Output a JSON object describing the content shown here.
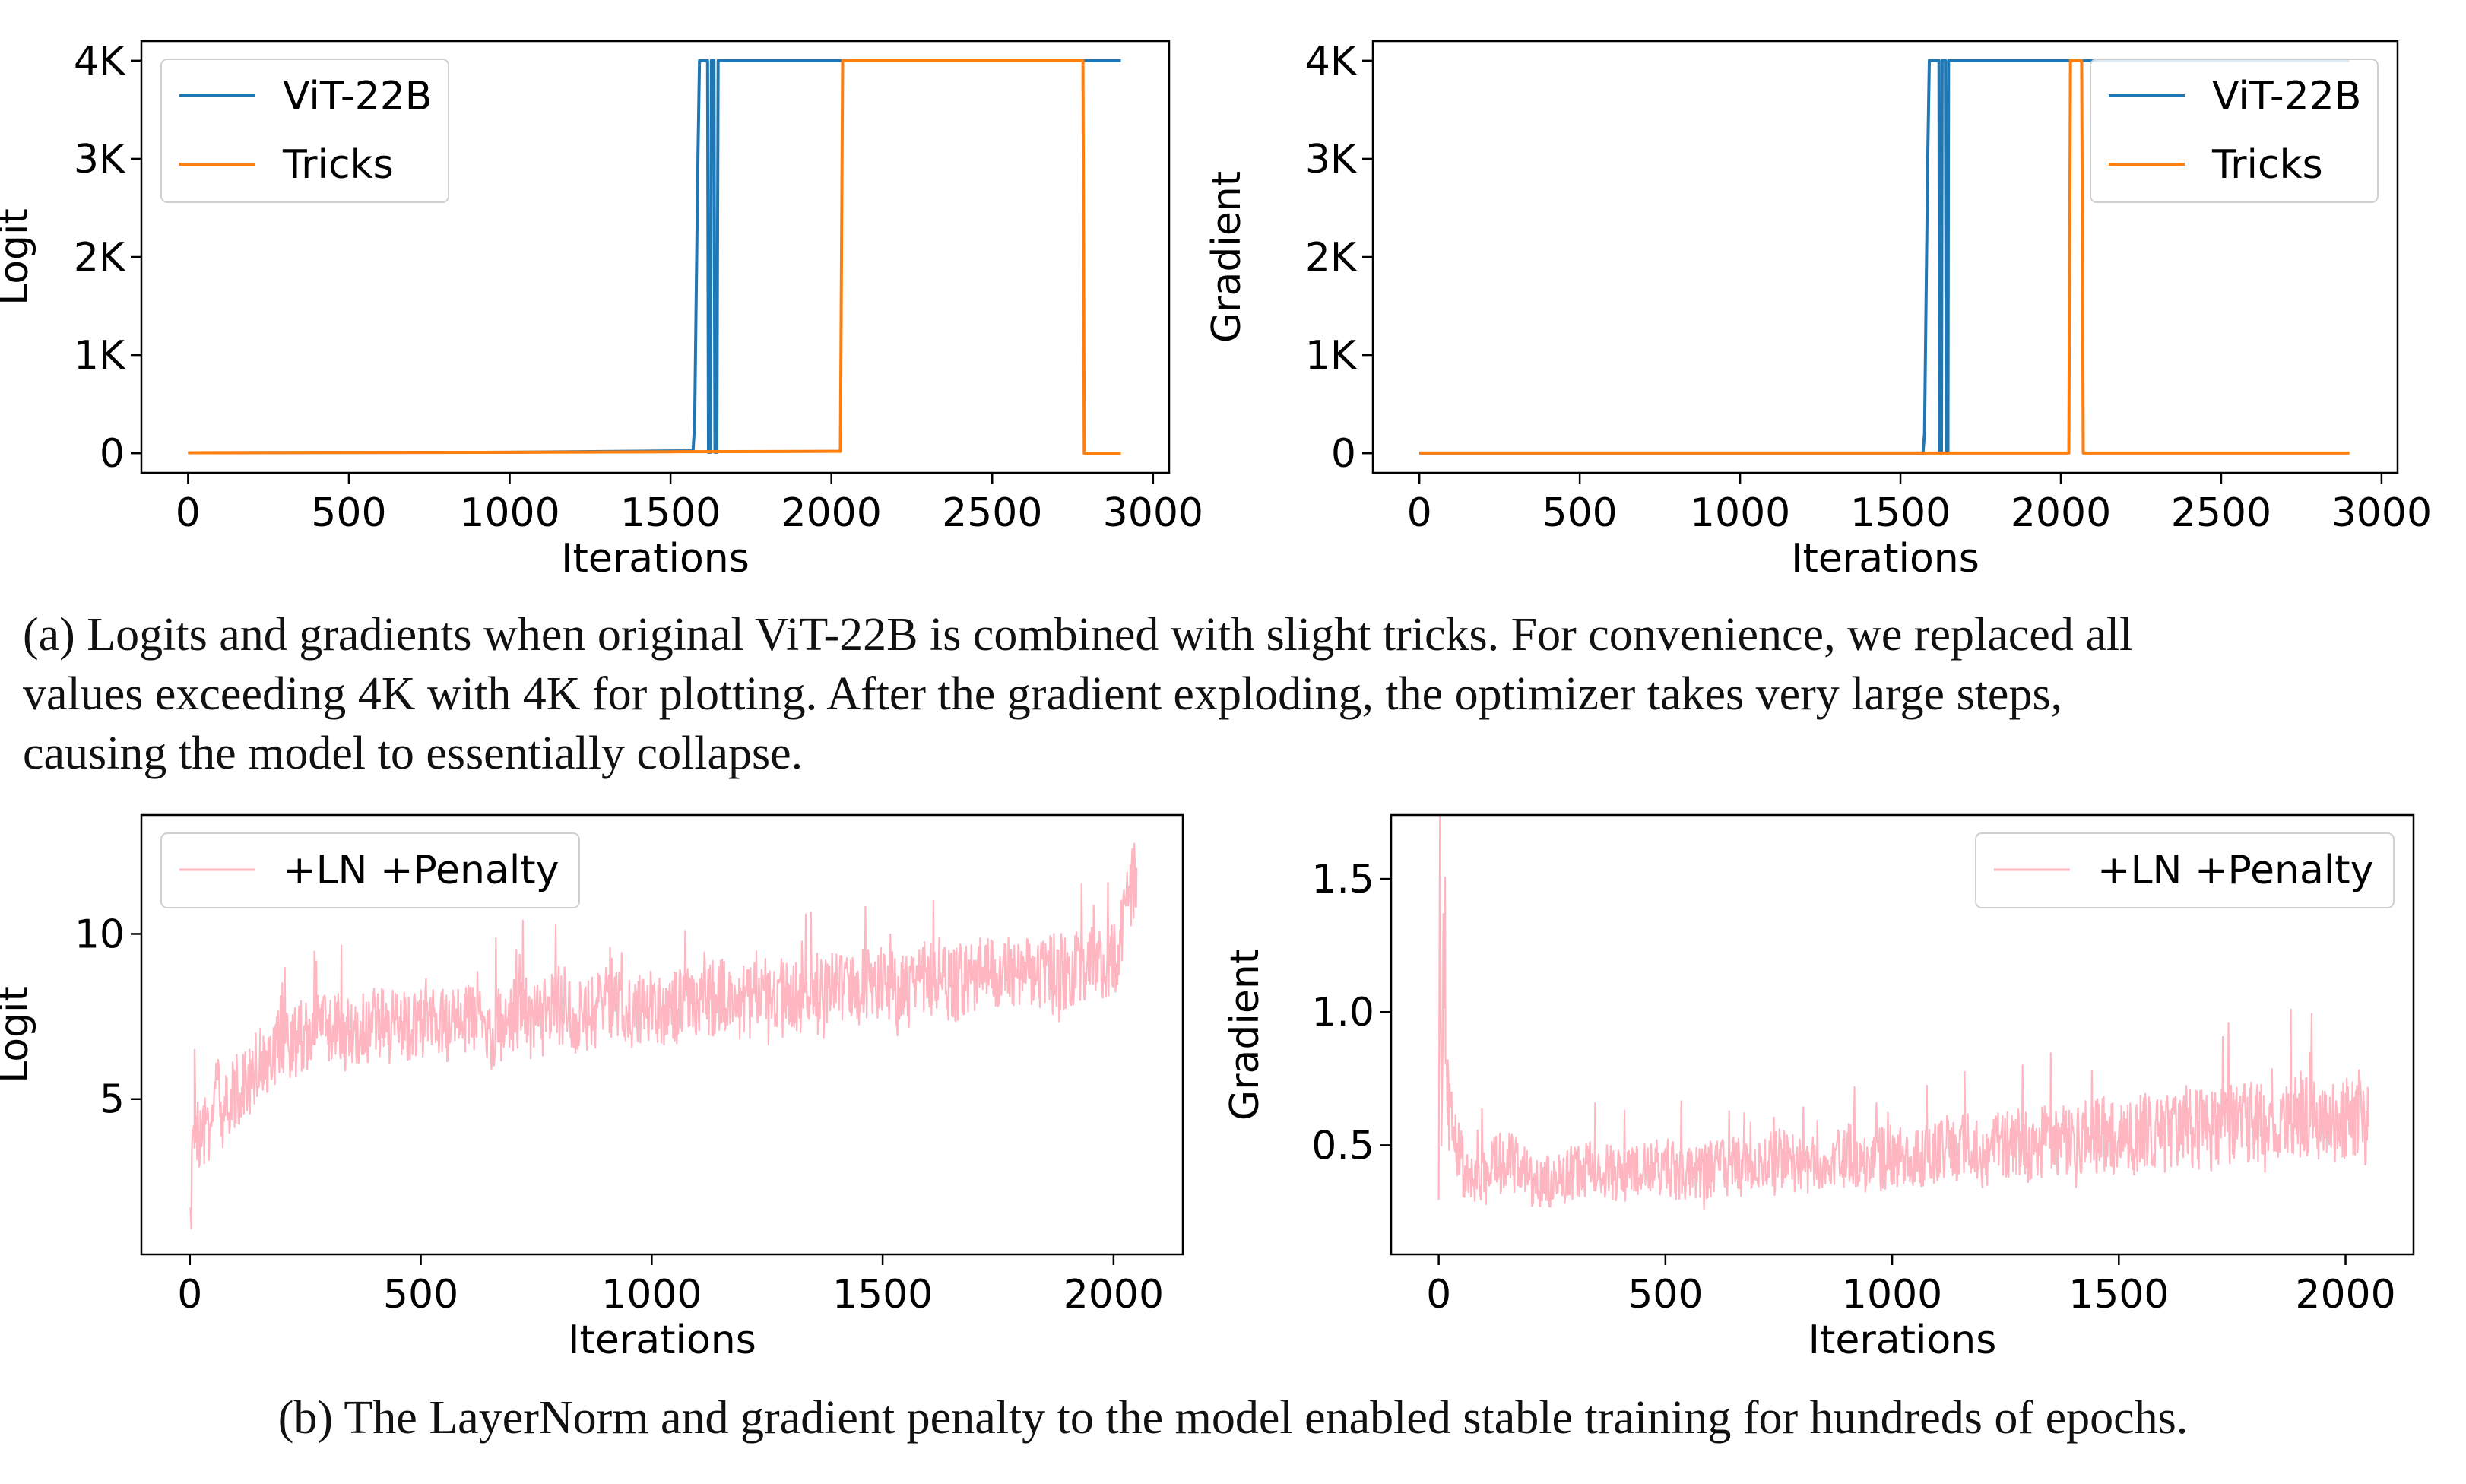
{
  "colors": {
    "vit": "#1f77b4",
    "tricks": "#ff7f0e",
    "penalty": "#ffb6c1",
    "frame": "#000000"
  },
  "captions": {
    "a": [
      "(a) Logits and gradients when original ViT-22B is combined with slight tricks. For convenience, we replaced all",
      "values exceeding 4K with 4K for plotting. After the gradient exploding, the optimizer takes very large steps,",
      "causing the model to essentially collapse."
    ],
    "b": "(b) The LayerNorm and gradient penalty to the model enabled stable training for hundreds of epochs."
  },
  "chart_data": [
    {
      "type": "line",
      "xlabel": "Iterations",
      "ylabel": "Logit",
      "xlim": [
        -145,
        3050
      ],
      "ylim": [
        -200,
        4200
      ],
      "xticks": [
        0,
        500,
        1000,
        1500,
        2000,
        2500,
        3000
      ],
      "xtick_labels": [
        "0",
        "500",
        "1000",
        "1500",
        "2000",
        "2500",
        "3000"
      ],
      "yticks": [
        0,
        1000,
        2000,
        3000,
        4000
      ],
      "ytick_labels": [
        "0",
        "1K",
        "2K",
        "3K",
        "4K"
      ],
      "grid": false,
      "legend": "upper left",
      "series": [
        {
          "name": "ViT-22B",
          "x": [
            0,
            1000,
            1570,
            1575,
            1585,
            1590,
            1615,
            1618,
            1624,
            1627,
            1635,
            1638,
            1644,
            1648,
            2900
          ],
          "y": [
            5,
            10,
            25,
            300,
            3000,
            4000,
            4000,
            10,
            10,
            4000,
            4000,
            10,
            10,
            4000,
            4000
          ]
        },
        {
          "name": "Tricks",
          "x": [
            0,
            1000,
            1500,
            2000,
            2028,
            2035,
            2782,
            2786,
            2900
          ],
          "y": [
            5,
            10,
            15,
            20,
            20,
            4000,
            4000,
            0,
            0
          ]
        }
      ]
    },
    {
      "type": "line",
      "xlabel": "Iterations",
      "ylabel": "Gradient",
      "xlim": [
        -145,
        3050
      ],
      "ylim": [
        -200,
        4200
      ],
      "xticks": [
        0,
        500,
        1000,
        1500,
        2000,
        2500,
        3000
      ],
      "xtick_labels": [
        "0",
        "500",
        "1000",
        "1500",
        "2000",
        "2500",
        "3000"
      ],
      "yticks": [
        0,
        1000,
        2000,
        3000,
        4000
      ],
      "ytick_labels": [
        "0",
        "1K",
        "2K",
        "3K",
        "4K"
      ],
      "grid": false,
      "legend": "upper right",
      "series": [
        {
          "name": "ViT-22B",
          "x": [
            0,
            1570,
            1575,
            1585,
            1590,
            1620,
            1622,
            1628,
            1630,
            1640,
            1643,
            1648,
            1650,
            2900
          ],
          "y": [
            2,
            2,
            200,
            3000,
            4000,
            4000,
            2,
            2,
            4000,
            4000,
            2,
            2,
            4000,
            4000
          ]
        },
        {
          "name": "Tricks",
          "x": [
            0,
            2025,
            2030,
            2065,
            2070,
            2900
          ],
          "y": [
            2,
            2,
            4000,
            4000,
            2,
            2
          ]
        }
      ]
    },
    {
      "type": "line",
      "xlabel": "Iterations",
      "ylabel": "Logit",
      "xlim": [
        -105,
        2150
      ],
      "ylim": [
        0.3,
        13.6
      ],
      "xticks": [
        0,
        500,
        1000,
        1500,
        2000
      ],
      "xtick_labels": [
        "0",
        "500",
        "1000",
        "1500",
        "2000"
      ],
      "yticks": [
        5,
        10
      ],
      "ytick_labels": [
        "5",
        "10"
      ],
      "grid": false,
      "legend": "upper left",
      "series": [
        {
          "name": "+LN +Penalty",
          "x": [
            0,
            10,
            20,
            40,
            60,
            80,
            100,
            130,
            160,
            200,
            250,
            300,
            350,
            400,
            450,
            500,
            550,
            600,
            650,
            700,
            750,
            800,
            850,
            900,
            950,
            1000,
            1050,
            1100,
            1150,
            1200,
            1250,
            1300,
            1350,
            1400,
            1450,
            1500,
            1550,
            1600,
            1650,
            1700,
            1750,
            1800,
            1850,
            1900,
            1950,
            2000,
            2050
          ],
          "y": [
            1.0,
            4.6,
            3.4,
            4.2,
            5.5,
            4.5,
            5.3,
            5.7,
            6.3,
            6.6,
            7.0,
            7.2,
            6.9,
            7.3,
            7.1,
            7.4,
            7.2,
            7.5,
            7.0,
            7.6,
            7.3,
            7.8,
            7.4,
            7.9,
            7.6,
            7.9,
            7.7,
            8.0,
            8.1,
            7.9,
            8.2,
            8.3,
            8.0,
            8.5,
            8.4,
            8.6,
            8.2,
            8.7,
            8.4,
            8.8,
            8.9,
            8.6,
            9.0,
            8.8,
            9.1,
            9.0,
            12.0
          ]
        }
      ]
    },
    {
      "type": "line",
      "xlabel": "Iterations",
      "ylabel": "Gradient",
      "xlim": [
        -105,
        2150
      ],
      "ylim": [
        0.09,
        1.74
      ],
      "xticks": [
        0,
        500,
        1000,
        1500,
        2000
      ],
      "xtick_labels": [
        "0",
        "500",
        "1000",
        "1500",
        "2000"
      ],
      "yticks": [
        0.5,
        1.0,
        1.5
      ],
      "ytick_labels": [
        "0.5",
        "1.0",
        "1.5"
      ],
      "grid": false,
      "legend": "upper right",
      "series": [
        {
          "name": "+LN +Penalty",
          "x": [
            0,
            3,
            6,
            10,
            15,
            20,
            30,
            40,
            60,
            80,
            100,
            150,
            200,
            250,
            300,
            350,
            400,
            450,
            500,
            550,
            600,
            650,
            700,
            750,
            800,
            850,
            900,
            950,
            1000,
            1050,
            1100,
            1150,
            1200,
            1250,
            1300,
            1350,
            1400,
            1450,
            1500,
            1550,
            1600,
            1650,
            1700,
            1750,
            1800,
            1850,
            1900,
            1950,
            2000,
            2050
          ],
          "y": [
            0.25,
            1.68,
            0.55,
            1.22,
            0.85,
            0.7,
            0.55,
            0.5,
            0.38,
            0.35,
            0.4,
            0.45,
            0.37,
            0.36,
            0.4,
            0.42,
            0.38,
            0.4,
            0.42,
            0.39,
            0.41,
            0.43,
            0.4,
            0.45,
            0.42,
            0.44,
            0.46,
            0.43,
            0.47,
            0.45,
            0.48,
            0.5,
            0.46,
            0.52,
            0.49,
            0.53,
            0.5,
            0.55,
            0.52,
            0.56,
            0.54,
            0.57,
            0.55,
            0.58,
            0.6,
            0.56,
            0.62,
            0.58,
            0.61,
            0.57
          ]
        }
      ]
    }
  ]
}
